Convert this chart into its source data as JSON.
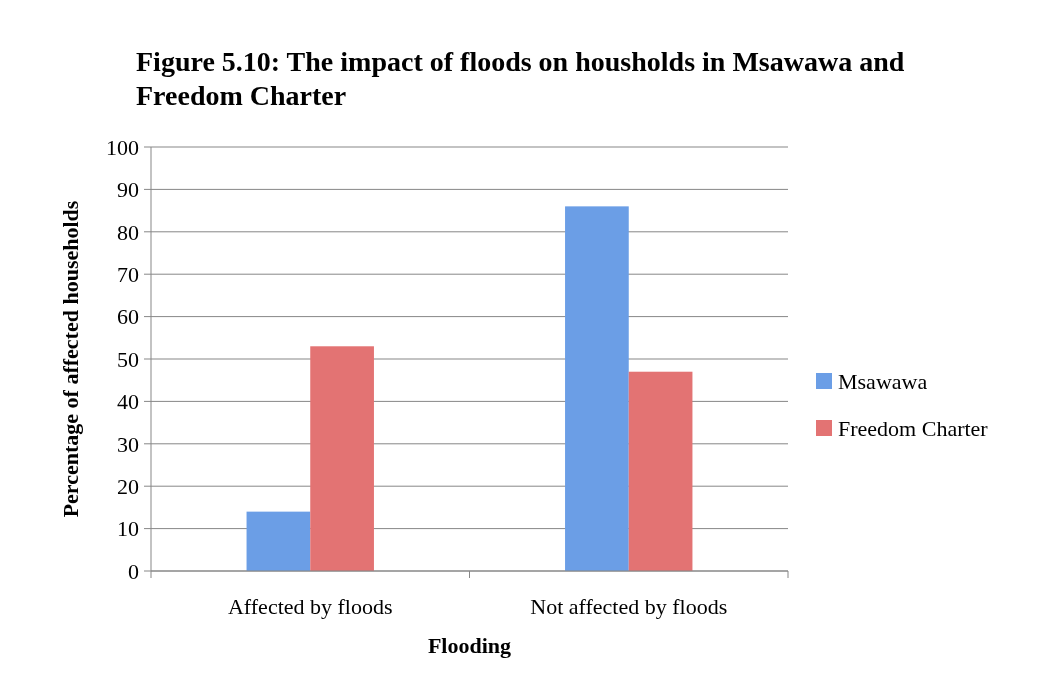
{
  "chart_data": {
    "type": "bar",
    "title": "Figure 5.10: The impact of floods on housholds in Msawawa and Freedom Charter",
    "xlabel": "Flooding",
    "ylabel": "Percentage of affected households",
    "categories": [
      "Affected by floods",
      "Not affected by floods"
    ],
    "series": [
      {
        "name": "Msawawa",
        "color": "#6b9ee6",
        "values": [
          14,
          86
        ]
      },
      {
        "name": "Freedom Charter",
        "color": "#e37373",
        "values": [
          53,
          47
        ]
      }
    ],
    "ylim": [
      0,
      100
    ],
    "yticks": [
      0,
      10,
      20,
      30,
      40,
      50,
      60,
      70,
      80,
      90,
      100
    ],
    "grid": "y",
    "legend": "right"
  }
}
